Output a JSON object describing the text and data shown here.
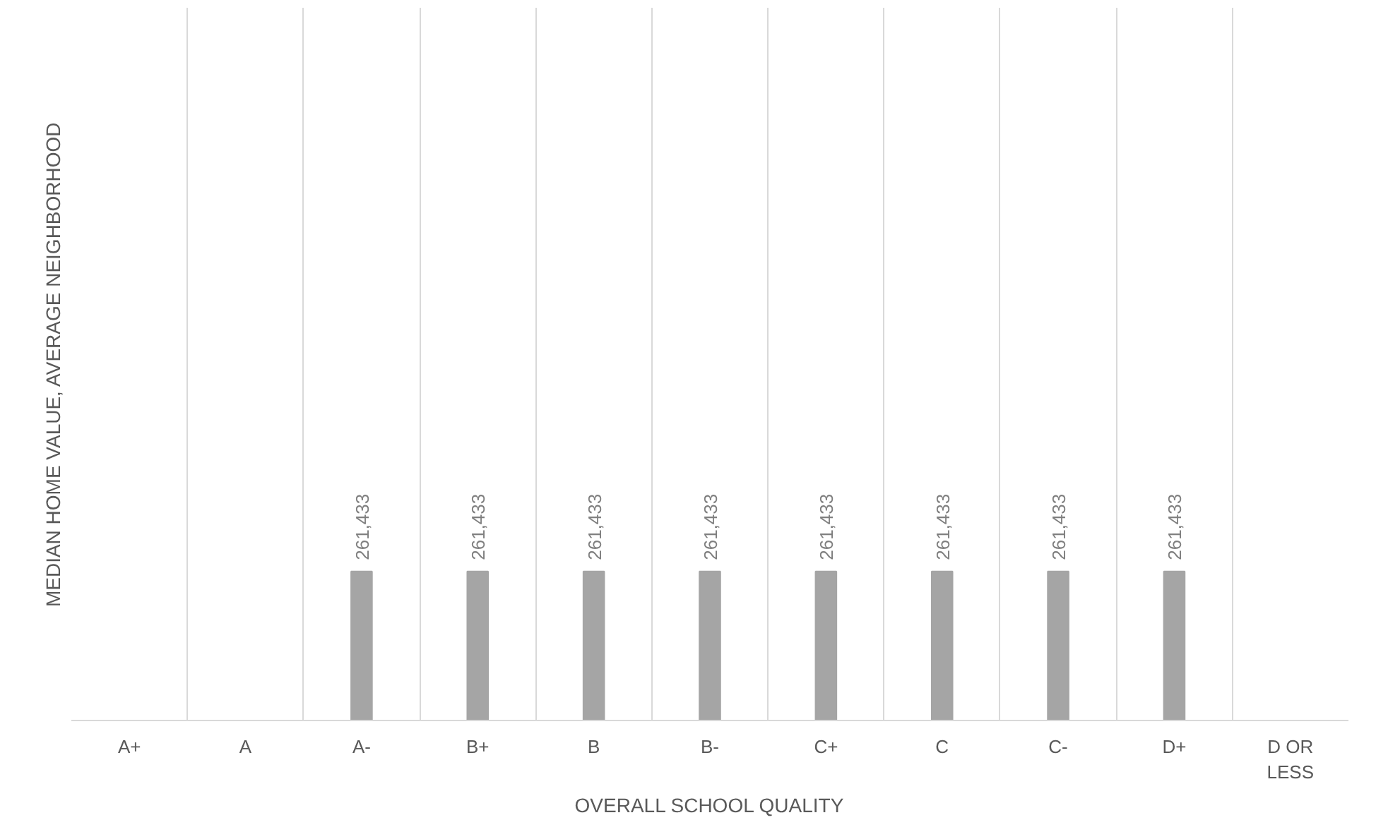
{
  "chart_data": {
    "type": "bar",
    "xlabel": "OVERALL SCHOOL QUALITY",
    "ylabel": "MEDIAN HOME VALUE, AVERAGE NEIGHBORHOOD",
    "categories": [
      "A+",
      "A",
      "A-",
      "B+",
      "B",
      "B-",
      "C+",
      "C",
      "C-",
      "D+",
      "D OR LESS"
    ],
    "values": [
      null,
      null,
      261433,
      261433,
      261433,
      261433,
      261433,
      261433,
      261433,
      261433,
      null
    ],
    "value_labels": [
      null,
      null,
      "261,433",
      "261,433",
      "261,433",
      "261,433",
      "261,433",
      "261,433",
      "261,433",
      "261,433",
      null
    ],
    "color": "#a5a5a5",
    "grid": "x",
    "ylim": [
      0,
      1250000
    ],
    "tick_labels": "x"
  }
}
